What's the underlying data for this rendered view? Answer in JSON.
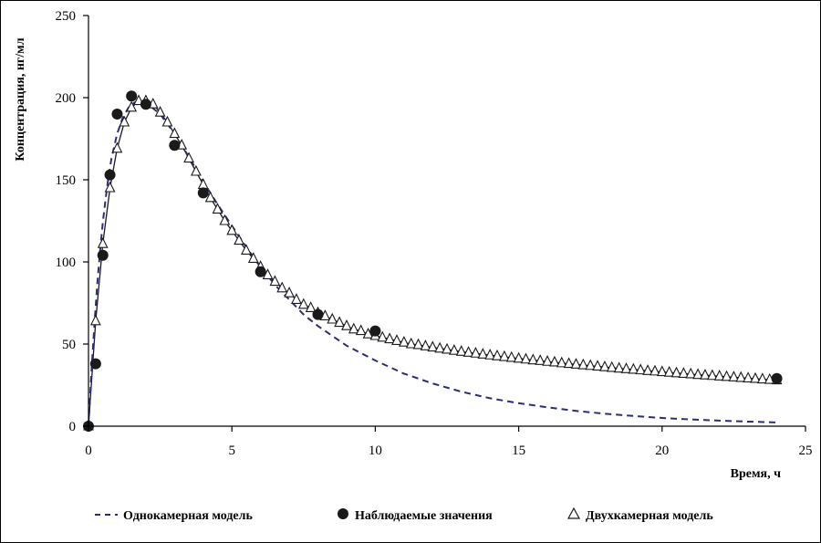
{
  "chart_data": {
    "type": "scatter",
    "xlabel": "Время, ч",
    "ylabel": "Концентрация, нг/мл",
    "xlim": [
      0,
      25
    ],
    "ylim": [
      0,
      250
    ],
    "x_ticks": [
      0,
      5,
      10,
      15,
      20,
      25
    ],
    "y_ticks": [
      0,
      50,
      100,
      150,
      200,
      250
    ],
    "grid": false,
    "legend_position": "bottom",
    "series": [
      {
        "name": "Однокамерная модель",
        "kind": "line",
        "style": "dashed",
        "color": "#2a2e7a",
        "x": [
          0,
          0.1,
          0.2,
          0.3,
          0.4,
          0.5,
          0.6,
          0.7,
          0.8,
          1.0,
          1.2,
          1.4,
          1.6,
          1.8,
          2.0,
          2.5,
          3.0,
          3.5,
          4.0,
          4.5,
          5.0,
          5.5,
          6.0,
          6.5,
          7.0,
          7.5,
          8.0,
          9.0,
          10.0,
          11.0,
          12.0,
          13.0,
          14.0,
          15.0,
          16.0,
          17.0,
          18.0,
          19.0,
          20.0,
          21.0,
          22.0,
          23.0,
          24.0
        ],
        "y": [
          0,
          32,
          60,
          85,
          106,
          124,
          139,
          152,
          163,
          178,
          188,
          194,
          197,
          198,
          197,
          190,
          178,
          164,
          149,
          135,
          122,
          109,
          97,
          86,
          77,
          68,
          61,
          49,
          40,
          32,
          26,
          21,
          17,
          14,
          11.5,
          9.3,
          7.6,
          6.2,
          5.0,
          4.1,
          3.4,
          2.8,
          2.3
        ]
      },
      {
        "name": "Наблюдаемые значения",
        "kind": "marker",
        "marker": "filled-circle",
        "color": "#1a1a1a",
        "x": [
          0,
          0.25,
          0.5,
          0.75,
          1.0,
          1.5,
          2.0,
          3.0,
          4.0,
          6.0,
          8.0,
          10.0,
          24.0
        ],
        "y": [
          0,
          38,
          104,
          153,
          190,
          201,
          196,
          171,
          142,
          94,
          68,
          58,
          29
        ]
      },
      {
        "name": "Двухкамерная модель",
        "kind": "line+marker",
        "marker": "open-triangle",
        "color": "#1a1a1a",
        "x": [
          0,
          0.25,
          0.5,
          0.75,
          1.0,
          1.25,
          1.5,
          1.75,
          2.0,
          2.25,
          2.5,
          2.75,
          3.0,
          3.25,
          3.5,
          3.75,
          4.0,
          4.25,
          4.5,
          4.75,
          5.0,
          5.25,
          5.5,
          5.75,
          6.0,
          6.25,
          6.5,
          6.75,
          7.0,
          7.25,
          7.5,
          7.75,
          8.0,
          8.25,
          8.5,
          8.75,
          9.0,
          9.25,
          9.5,
          9.75,
          10.0,
          10.25,
          10.5,
          10.75,
          11.0,
          11.25,
          11.5,
          11.75,
          12.0,
          12.25,
          12.5,
          12.75,
          13.0,
          13.25,
          13.5,
          13.75,
          14.0,
          14.25,
          14.5,
          14.75,
          15.0,
          15.25,
          15.5,
          15.75,
          16.0,
          16.25,
          16.5,
          16.75,
          17.0,
          17.25,
          17.5,
          17.75,
          18.0,
          18.25,
          18.5,
          18.75,
          19.0,
          19.25,
          19.5,
          19.75,
          20.0,
          20.25,
          20.5,
          20.75,
          21.0,
          21.25,
          21.5,
          21.75,
          22.0,
          22.25,
          22.5,
          22.75,
          23.0,
          23.25,
          23.5,
          23.75,
          24.0
        ],
        "y": [
          0,
          64,
          111,
          145,
          169,
          185,
          194,
          198,
          198,
          196,
          191,
          185,
          178,
          171,
          163,
          155,
          147,
          139,
          132,
          125,
          119,
          113,
          107,
          102,
          97,
          92,
          88,
          84,
          81,
          77,
          74,
          72,
          69,
          67,
          65,
          63,
          61,
          59,
          58,
          56,
          55,
          54,
          53,
          52,
          51,
          50,
          49.5,
          48.7,
          48,
          47.3,
          46.7,
          46,
          45.4,
          44.8,
          44.3,
          43.7,
          43.2,
          42.7,
          42.2,
          41.7,
          41.2,
          40.7,
          40.2,
          39.8,
          39.3,
          38.9,
          38.4,
          38,
          37.6,
          37.2,
          36.8,
          36.4,
          36,
          35.6,
          35.2,
          34.8,
          34.5,
          34.1,
          33.7,
          33.4,
          33,
          32.7,
          32.3,
          32,
          31.7,
          31.3,
          31,
          30.7,
          30.4,
          30.1,
          29.8,
          29.5,
          29.2,
          28.9,
          28.6,
          28.3,
          28
        ]
      }
    ]
  }
}
